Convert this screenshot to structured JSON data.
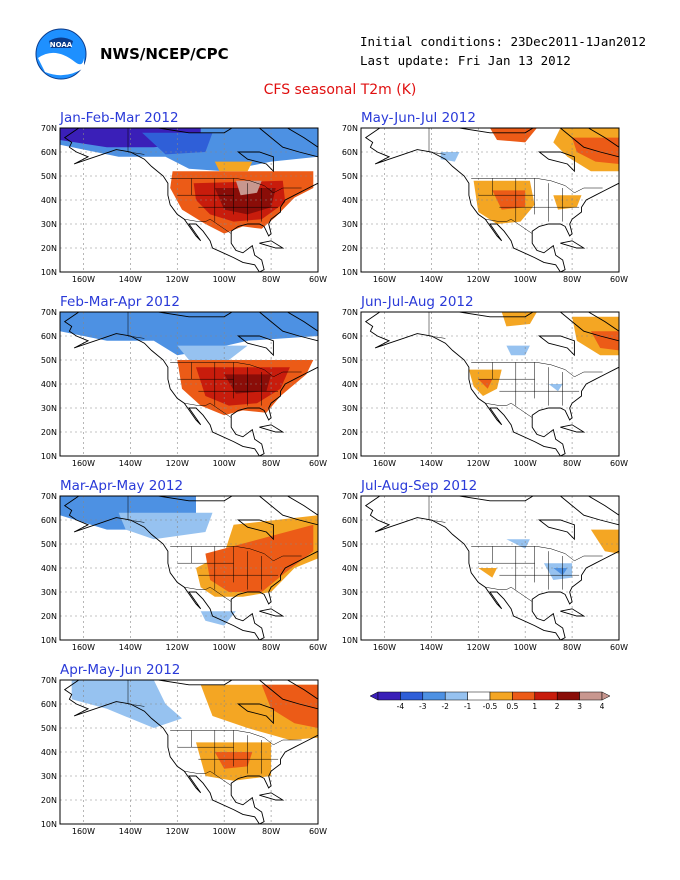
{
  "header": {
    "agency": "NWS/NCEP/CPC",
    "initial_conditions": "Initial conditions: 23Dec2011-1Jan2012",
    "last_update": "Last update: Fri Jan 13 2012",
    "title": "CFS seasonal T2m (K)"
  },
  "colors": {
    "bins": [
      "#3a1fb8",
      "#2f5fd8",
      "#4d91e3",
      "#96c2f0",
      "#ffffff",
      "#f4a623",
      "#ec5b17",
      "#c81c0c",
      "#8a0d08",
      "#c8978f"
    ],
    "title": "#e01010",
    "panel_title": "#2a3ad8"
  },
  "axes": {
    "lon_labels": [
      "160W",
      "140W",
      "120W",
      "100W",
      "80W",
      "60W"
    ],
    "lat_labels": [
      "10N",
      "20N",
      "30N",
      "40N",
      "50N",
      "60N",
      "70N"
    ]
  },
  "colorbar": {
    "labels": [
      "-4",
      "-3",
      "-2",
      "-1",
      "-0.5",
      "0.5",
      "1",
      "2",
      "3",
      "4"
    ]
  },
  "panels": [
    {
      "title": "Jan-Feb-Mar 2012",
      "anomaly_pattern": "cold northwest Canada/Alaska, warm central and eastern US"
    },
    {
      "title": "May-Jun-Jul 2012",
      "anomaly_pattern": "warm western US interior and northeast Canada"
    },
    {
      "title": "Feb-Mar-Apr 2012",
      "anomaly_pattern": "cold Alaska/western Canada, warm central and eastern US"
    },
    {
      "title": "Jun-Jul-Aug 2012",
      "anomaly_pattern": "warm northeast Canada, weak warm western US"
    },
    {
      "title": "Mar-Apr-May 2012",
      "anomaly_pattern": "cold northwest, warm east-central US and eastern Canada"
    },
    {
      "title": "Jul-Aug-Sep 2012",
      "anomaly_pattern": "mostly near normal, weak cool Ohio Valley"
    },
    {
      "title": "Apr-May-Jun 2012",
      "anomaly_pattern": "cool northwest Canada, warm eastern Canada and southern US"
    }
  ]
}
